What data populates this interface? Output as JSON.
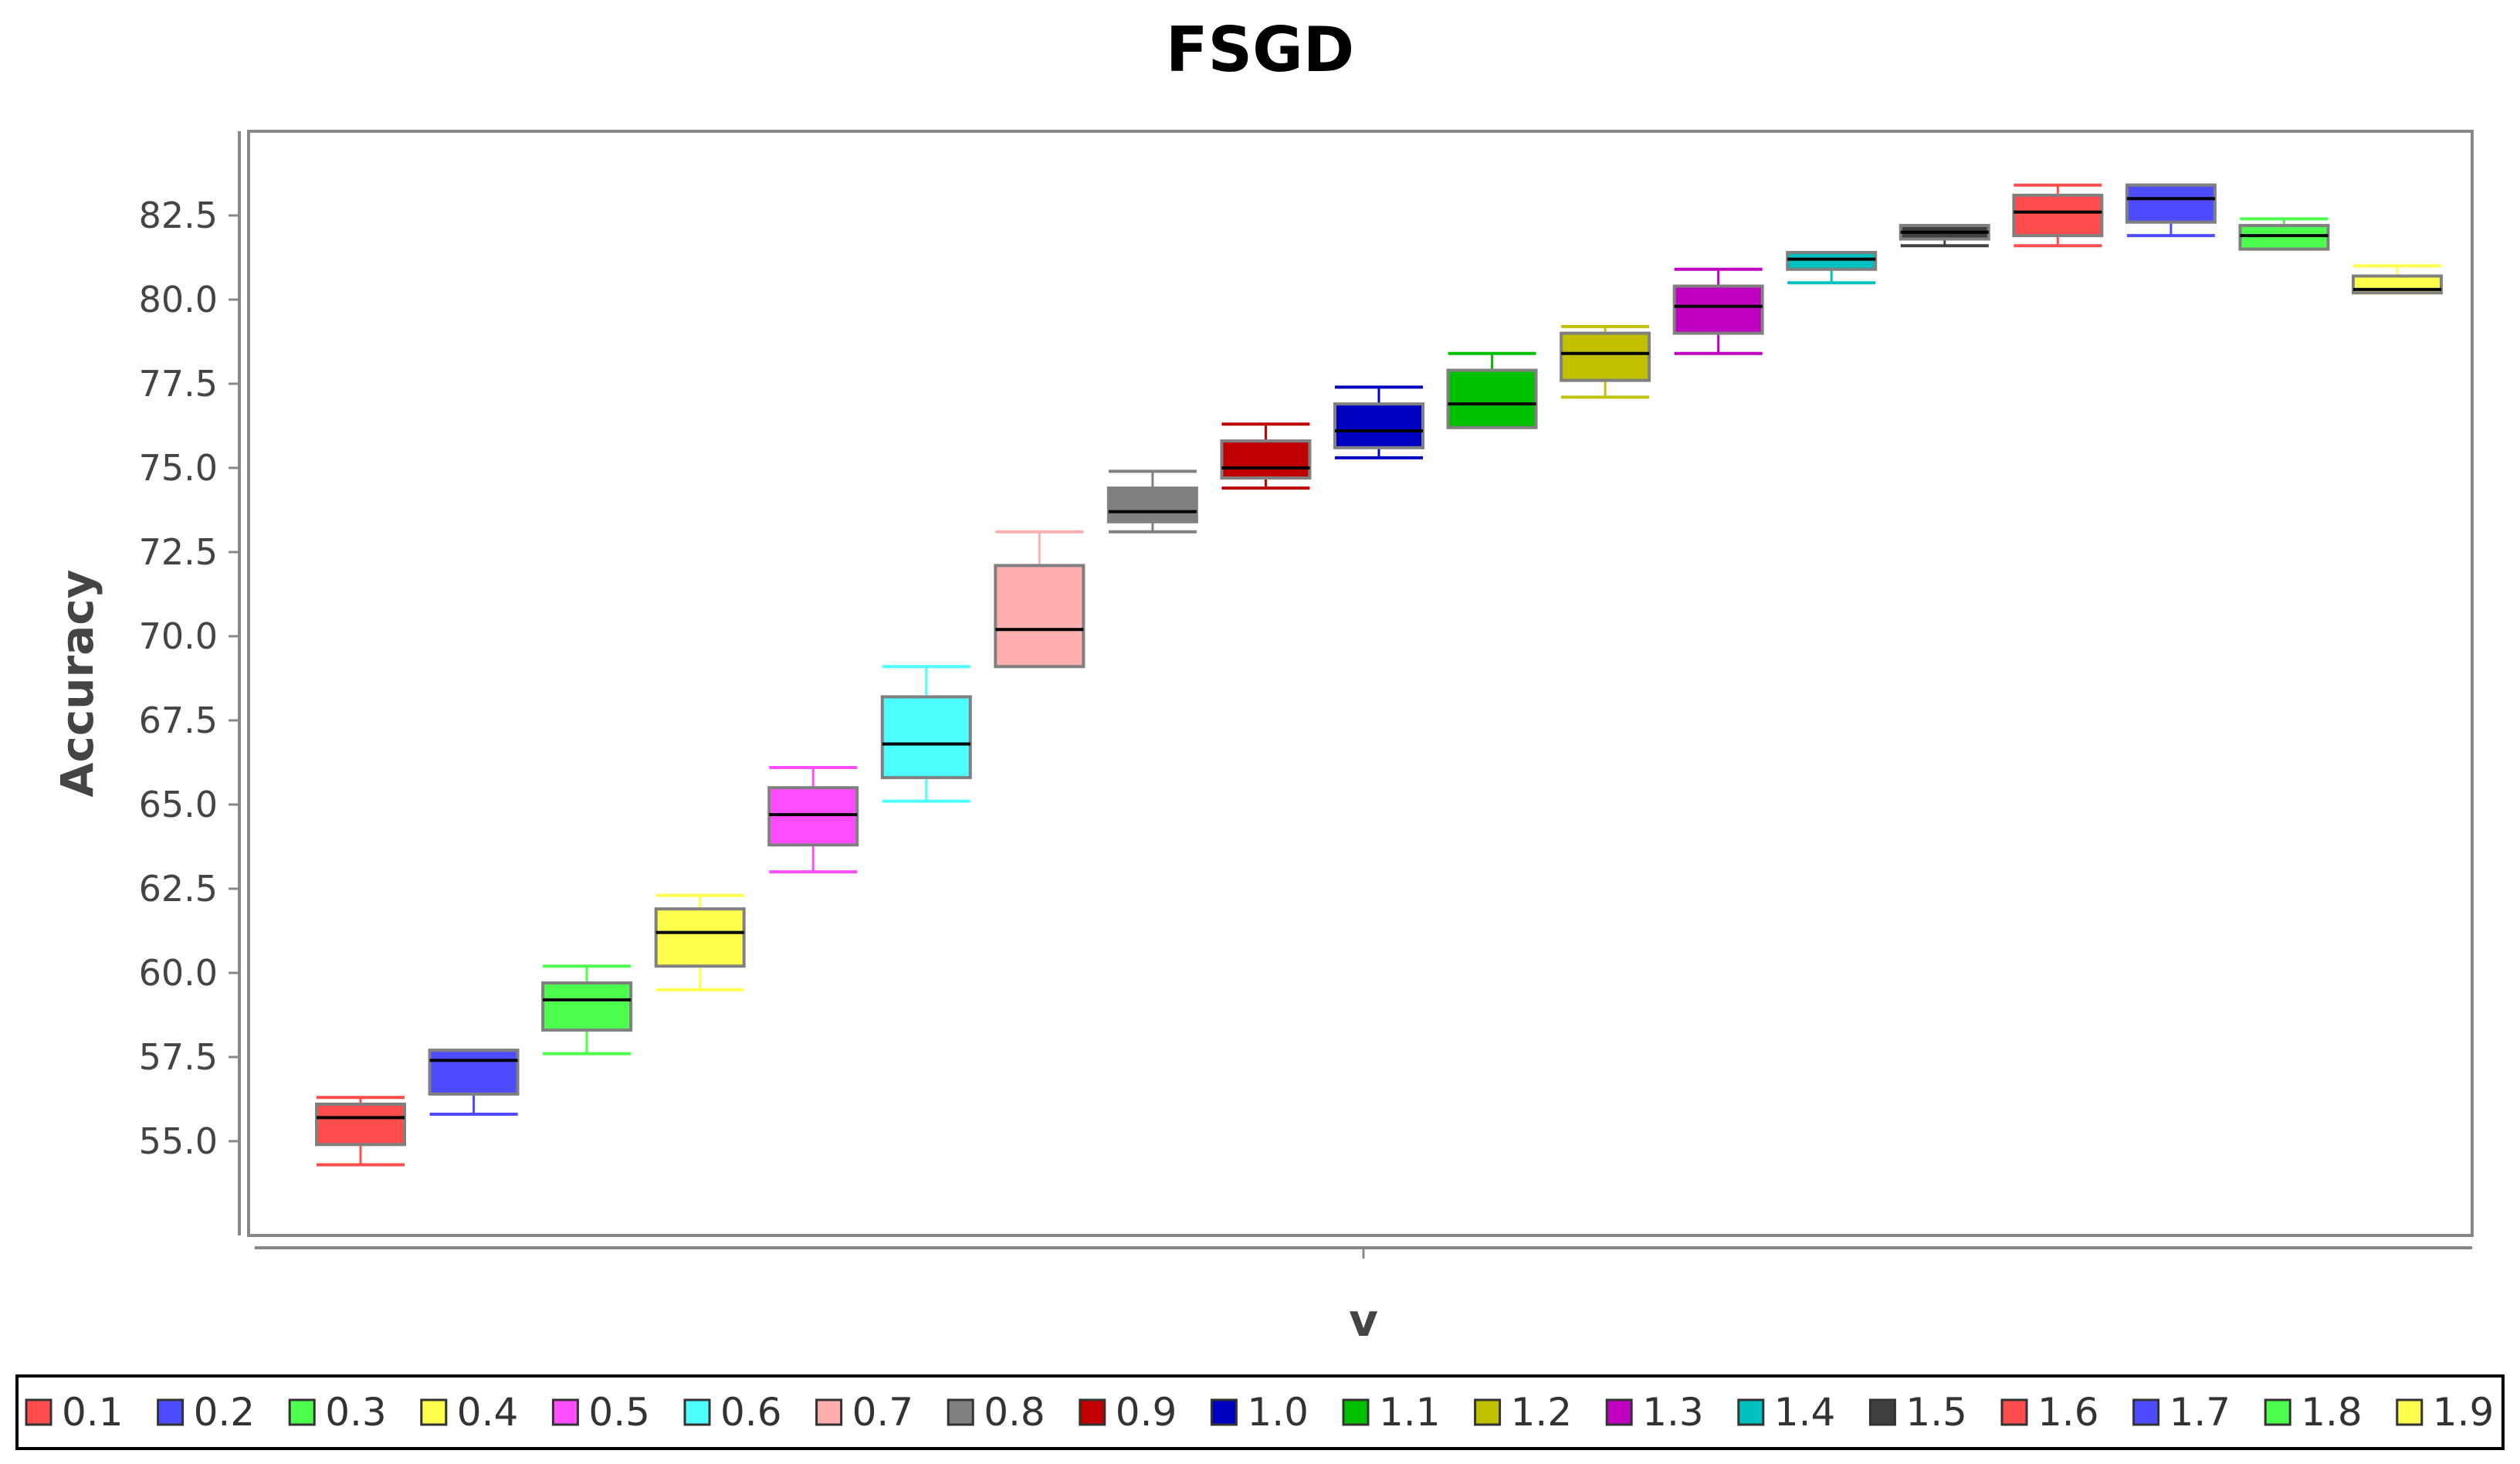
{
  "chart_data": {
    "type": "box",
    "title": "FSGD",
    "xlabel": "v",
    "ylabel": "Accuracy",
    "ylim": [
      52.2,
      85.0
    ],
    "yticks": [
      "55.0",
      "57.5",
      "60.0",
      "62.5",
      "65.0",
      "67.5",
      "70.0",
      "72.5",
      "75.0",
      "77.5",
      "80.0",
      "82.5"
    ],
    "legend_position": "bottom",
    "grid": false,
    "series": [
      {
        "name": "0.1",
        "color": "#ff4d4d",
        "min": 54.3,
        "q1": 54.9,
        "median": 55.7,
        "q3": 56.1,
        "max": 56.3
      },
      {
        "name": "0.2",
        "color": "#4d4dff",
        "min": 55.8,
        "q1": 56.4,
        "median": 57.4,
        "q3": 57.7,
        "max": 57.7
      },
      {
        "name": "0.3",
        "color": "#4dff4d",
        "min": 57.6,
        "q1": 58.3,
        "median": 59.2,
        "q3": 59.7,
        "max": 60.2
      },
      {
        "name": "0.4",
        "color": "#ffff4d",
        "min": 59.5,
        "q1": 60.2,
        "median": 61.2,
        "q3": 61.9,
        "max": 62.3
      },
      {
        "name": "0.5",
        "color": "#ff4dff",
        "min": 63.0,
        "q1": 63.8,
        "median": 64.7,
        "q3": 65.5,
        "max": 66.1
      },
      {
        "name": "0.6",
        "color": "#4dffff",
        "min": 65.1,
        "q1": 65.8,
        "median": 66.8,
        "q3": 68.2,
        "max": 69.1
      },
      {
        "name": "0.7",
        "color": "#ffafaf",
        "min": 69.1,
        "q1": 69.1,
        "median": 70.2,
        "q3": 72.1,
        "max": 73.1
      },
      {
        "name": "0.8",
        "color": "#808080",
        "min": 73.1,
        "q1": 73.4,
        "median": 73.7,
        "q3": 74.4,
        "max": 74.9
      },
      {
        "name": "0.9",
        "color": "#c00000",
        "min": 74.4,
        "q1": 74.7,
        "median": 75.0,
        "q3": 75.8,
        "max": 76.3
      },
      {
        "name": "1.0",
        "color": "#0000c0",
        "min": 75.3,
        "q1": 75.6,
        "median": 76.1,
        "q3": 76.9,
        "max": 77.4
      },
      {
        "name": "1.1",
        "color": "#00c000",
        "min": 76.2,
        "q1": 76.2,
        "median": 76.9,
        "q3": 77.9,
        "max": 78.4
      },
      {
        "name": "1.2",
        "color": "#c0c000",
        "min": 77.1,
        "q1": 77.6,
        "median": 78.4,
        "q3": 79.0,
        "max": 79.2
      },
      {
        "name": "1.3",
        "color": "#c000c0",
        "min": 78.4,
        "q1": 79.0,
        "median": 79.8,
        "q3": 80.4,
        "max": 80.9
      },
      {
        "name": "1.4",
        "color": "#00c0c0",
        "min": 80.5,
        "q1": 80.9,
        "median": 81.2,
        "q3": 81.4,
        "max": 81.4
      },
      {
        "name": "1.5",
        "color": "#404040",
        "min": 81.6,
        "q1": 81.8,
        "median": 82.0,
        "q3": 82.2,
        "max": 82.2
      },
      {
        "name": "1.6",
        "color": "#ff4d4d",
        "min": 81.6,
        "q1": 81.9,
        "median": 82.6,
        "q3": 83.1,
        "max": 83.4
      },
      {
        "name": "1.7",
        "color": "#4d4dff",
        "min": 81.9,
        "q1": 82.3,
        "median": 83.0,
        "q3": 83.4,
        "max": 83.4
      },
      {
        "name": "1.8",
        "color": "#4dff4d",
        "min": 81.5,
        "q1": 81.5,
        "median": 81.9,
        "q3": 82.2,
        "max": 82.4
      },
      {
        "name": "1.9",
        "color": "#ffff4d",
        "min": 80.2,
        "q1": 80.2,
        "median": 80.3,
        "q3": 80.7,
        "max": 81.0
      }
    ]
  }
}
